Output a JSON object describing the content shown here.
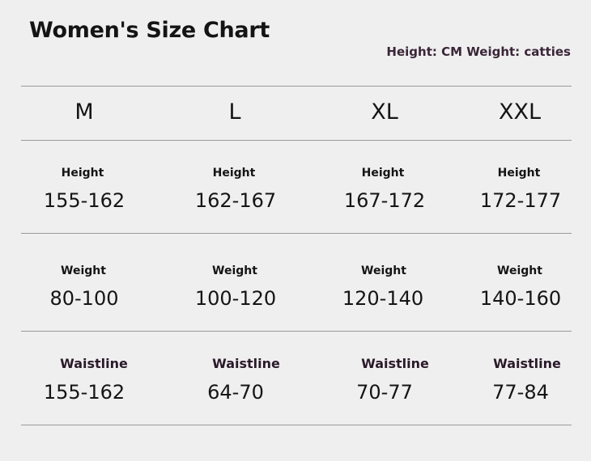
{
  "title": "Women's Size Chart",
  "units": "Height: CM Weight: catties",
  "sizes": [
    "M",
    "L",
    "XL",
    "XXL"
  ],
  "rows": [
    {
      "labels": [
        "Height",
        "Height",
        "Height",
        "Height"
      ],
      "values": [
        "155-162",
        "162-167",
        "167-172",
        "172-177"
      ]
    },
    {
      "labels": [
        "Weight",
        "Weight",
        "Weight",
        "Weight"
      ],
      "values": [
        "80-100",
        "100-120",
        "120-140",
        "140-160"
      ]
    },
    {
      "labels": [
        "Waistline",
        "Waistline",
        "Waistline",
        "Waistline"
      ],
      "values": [
        "155-162",
        "64-70",
        "70-77",
        "77-84"
      ]
    }
  ]
}
